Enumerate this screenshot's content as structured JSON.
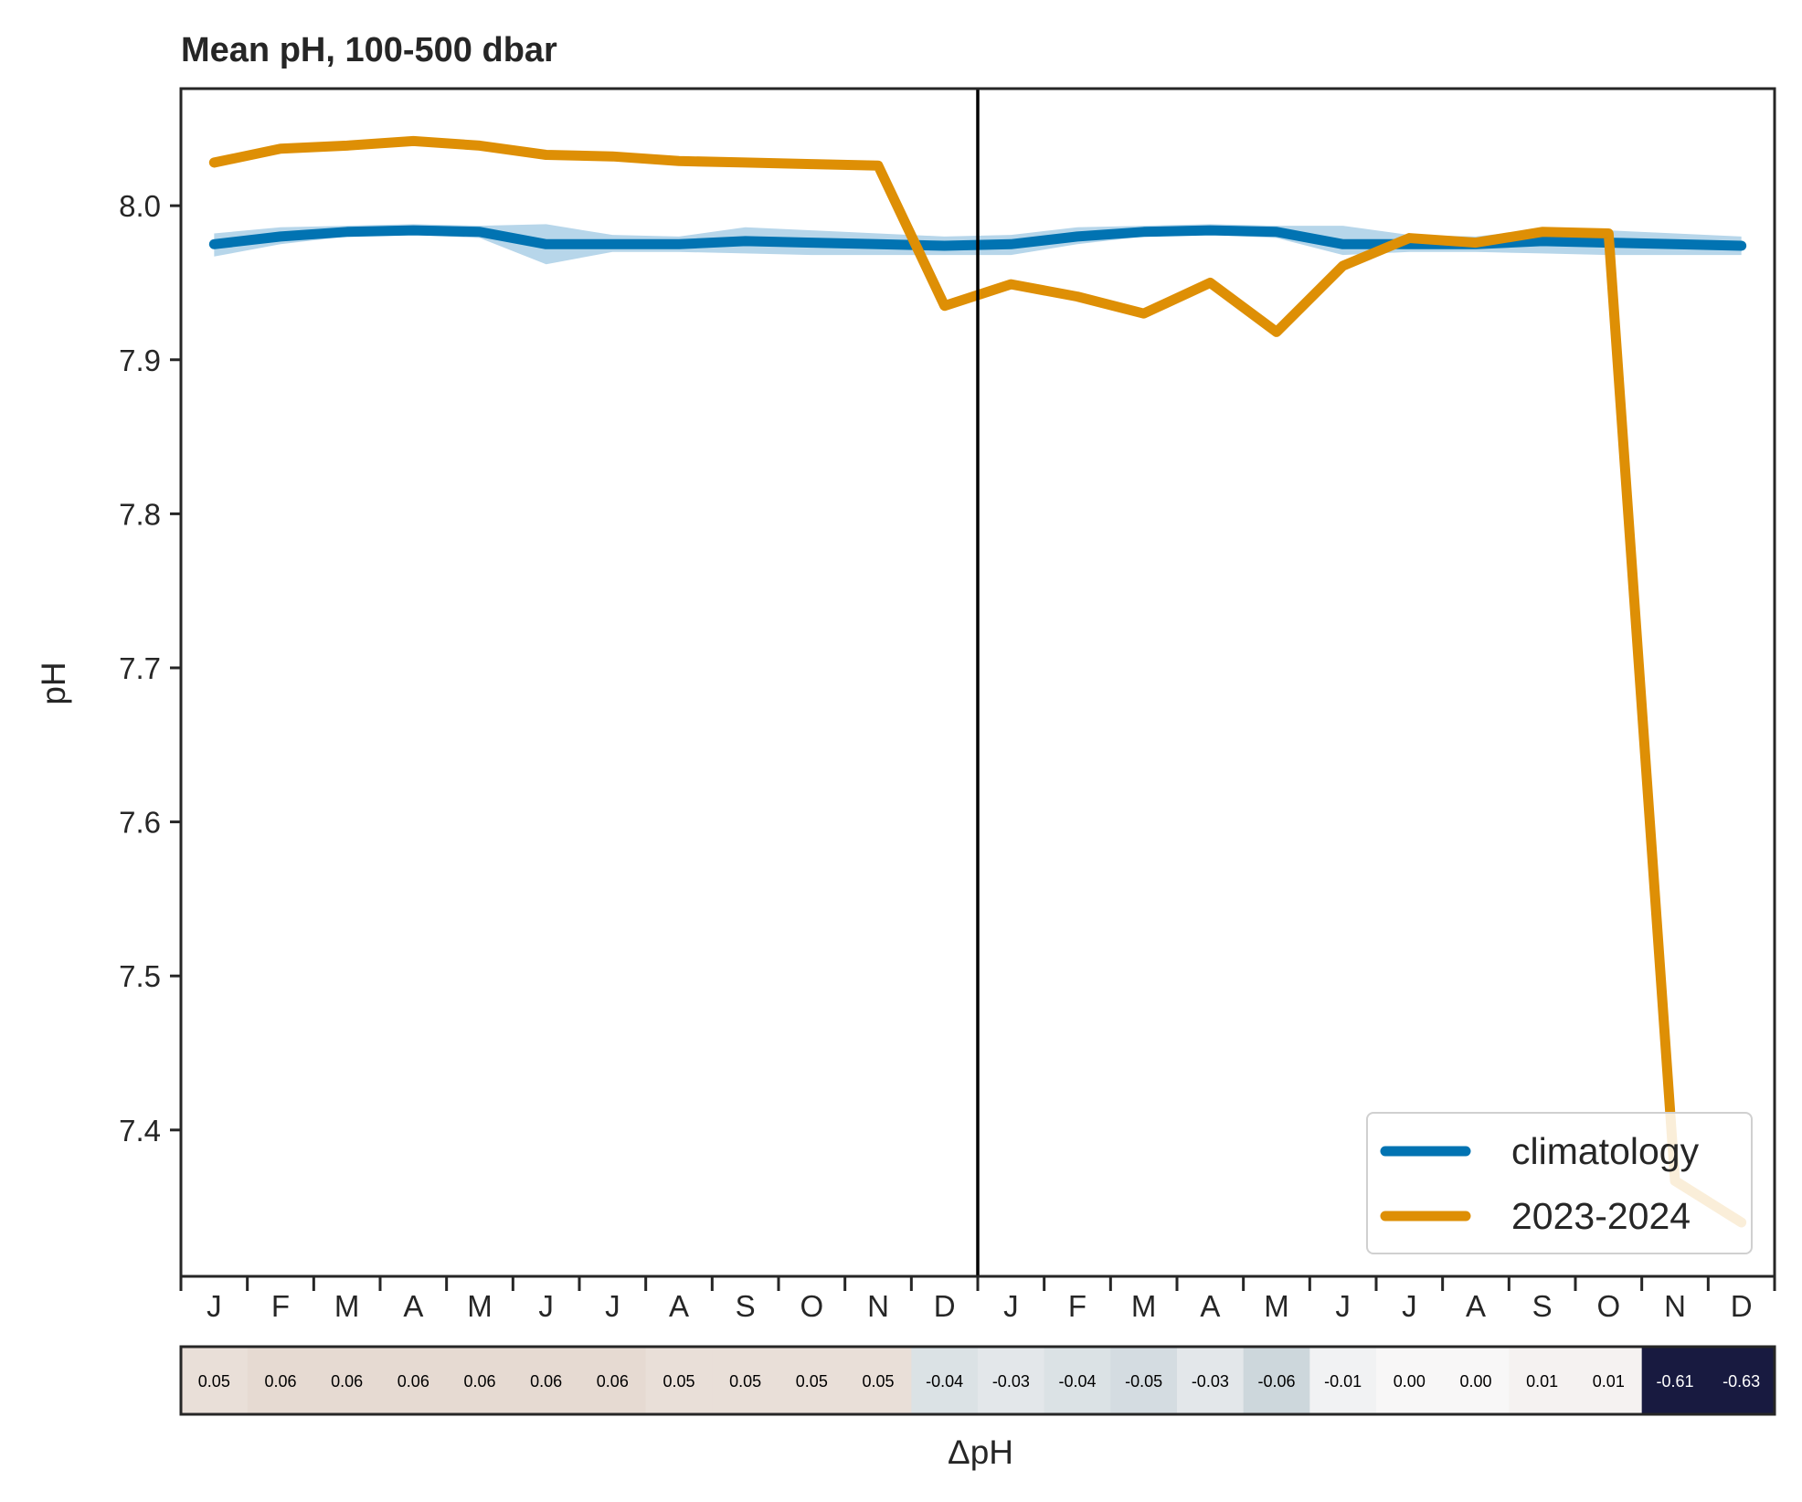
{
  "chart_data": {
    "type": "line",
    "title": "Mean pH, 100-500 dbar",
    "ylabel": "pH",
    "xlabel": "",
    "ylim": [
      7.305,
      8.076
    ],
    "yticks": [
      "7.4",
      "7.5",
      "7.6",
      "7.7",
      "7.8",
      "7.9",
      "8.0"
    ],
    "categories": [
      "J",
      "F",
      "M",
      "A",
      "M",
      "J",
      "J",
      "A",
      "S",
      "O",
      "N",
      "D",
      "J",
      "F",
      "M",
      "A",
      "M",
      "J",
      "J",
      "A",
      "S",
      "O",
      "N",
      "D"
    ],
    "divider_after_index": 11,
    "series": [
      {
        "name": "climatology",
        "color": "#0173b2",
        "values": [
          7.975,
          7.98,
          7.983,
          7.984,
          7.983,
          7.975,
          7.975,
          7.975,
          7.977,
          7.976,
          7.975,
          7.974,
          7.975,
          7.98,
          7.983,
          7.984,
          7.983,
          7.975,
          7.975,
          7.975,
          7.977,
          7.976,
          7.975,
          7.974
        ],
        "band_lower": [
          7.967,
          7.975,
          7.98,
          7.981,
          7.979,
          7.962,
          7.97,
          7.97,
          7.969,
          7.968,
          7.968,
          7.968,
          7.968,
          7.975,
          7.98,
          7.981,
          7.979,
          7.968,
          7.97,
          7.97,
          7.969,
          7.968,
          7.968,
          7.968
        ],
        "band_upper": [
          7.982,
          7.986,
          7.987,
          7.988,
          7.987,
          7.988,
          7.981,
          7.98,
          7.986,
          7.984,
          7.982,
          7.98,
          7.981,
          7.986,
          7.987,
          7.988,
          7.987,
          7.987,
          7.981,
          7.98,
          7.985,
          7.984,
          7.982,
          7.98
        ],
        "band_color": "#b7d6ea"
      },
      {
        "name": "2023-2024",
        "color": "#de8f05",
        "values": [
          8.028,
          8.037,
          8.039,
          8.042,
          8.039,
          8.033,
          8.032,
          8.029,
          8.028,
          8.027,
          8.026,
          7.935,
          7.949,
          7.941,
          7.93,
          7.95,
          7.918,
          7.961,
          7.979,
          7.976,
          7.983,
          7.982,
          7.367,
          7.34
        ]
      }
    ],
    "legend": {
      "placement": "lower-right",
      "entries": [
        "climatology",
        "2023-2024"
      ]
    },
    "anomaly_strip": {
      "label": "ΔpH",
      "values": [
        "0.05",
        "0.06",
        "0.06",
        "0.06",
        "0.06",
        "0.06",
        "0.06",
        "0.05",
        "0.05",
        "0.05",
        "0.05",
        "-0.04",
        "-0.03",
        "-0.04",
        "-0.05",
        "-0.03",
        "-0.06",
        "-0.01",
        "0.00",
        "0.00",
        "0.01",
        "0.01",
        "-0.61",
        "-0.63"
      ]
    }
  }
}
